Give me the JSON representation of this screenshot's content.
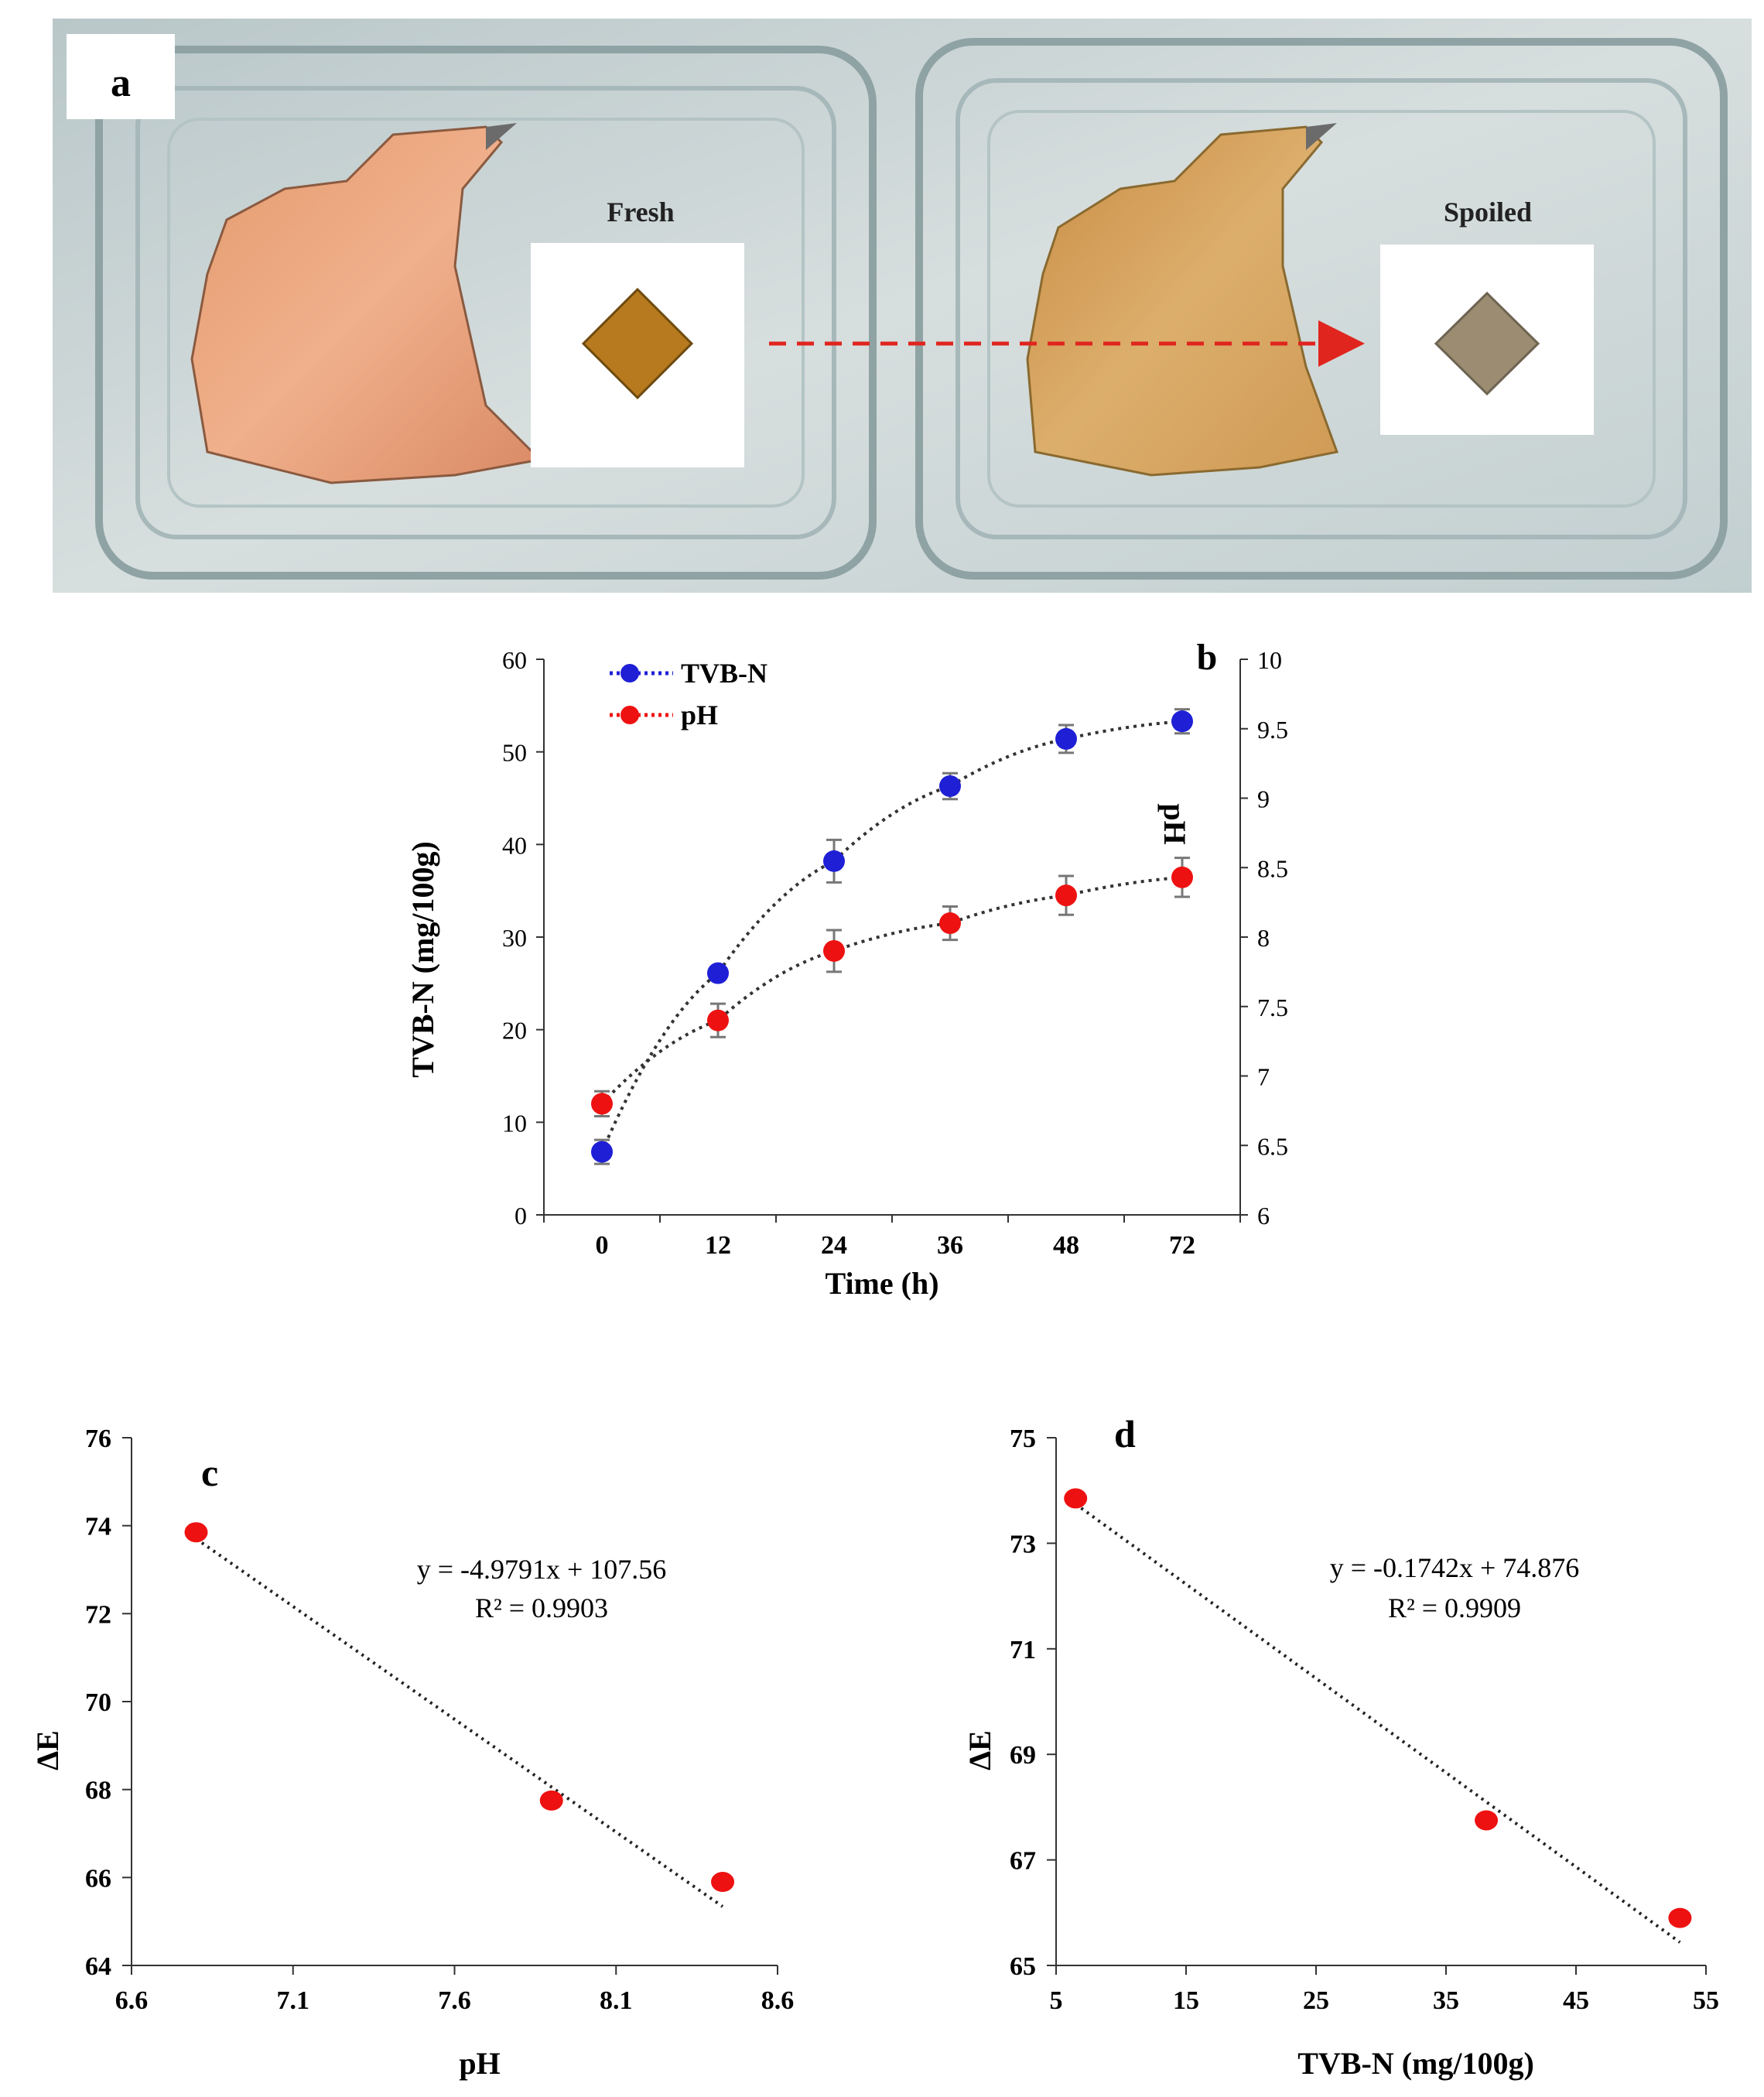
{
  "panel_a": {
    "label": "a",
    "fresh_label": "Fresh",
    "spoiled_label": "Spoiled",
    "colors": {
      "fresh_indicator": "#b87a1e",
      "spoiled_indicator": "#9c8c72",
      "arrow": "#e0241e"
    }
  },
  "chart_data": [
    {
      "id": "b",
      "type": "line",
      "panel_label": "b",
      "xlabel": "Time (h)",
      "ylabel": "TVB-N (mg/100g)",
      "y2label": "pH",
      "categories": [
        "0",
        "12",
        "24",
        "36",
        "48",
        "72"
      ],
      "ylim": [
        0,
        60
      ],
      "yticks": [
        0,
        10,
        20,
        30,
        40,
        50,
        60
      ],
      "y2lim": [
        6,
        10
      ],
      "y2ticks": [
        "6",
        "6.5",
        "7",
        "7.5",
        "8",
        "8.5",
        "9",
        "9.5",
        "10"
      ],
      "series": [
        {
          "name": "TVB-N",
          "axis": "left",
          "color": "#1f1fd6",
          "values": [
            6.8,
            26.1,
            38.2,
            46.3,
            51.4,
            53.3
          ],
          "errors": [
            1.3,
            0.6,
            2.3,
            1.4,
            1.5,
            1.3
          ]
        },
        {
          "name": "pH",
          "axis": "right",
          "color": "#ee1111",
          "values": [
            6.8,
            7.4,
            7.9,
            8.1,
            8.3,
            8.43
          ],
          "errors": [
            0.09,
            0.12,
            0.15,
            0.12,
            0.14,
            0.14
          ]
        }
      ]
    },
    {
      "id": "c",
      "type": "scatter",
      "panel_label": "c",
      "xlabel": "pH",
      "ylabel": "ΔE",
      "xlim": [
        6.6,
        8.6
      ],
      "xticks": [
        "6.6",
        "7.1",
        "7.6",
        "8.1",
        "8.6"
      ],
      "ylim": [
        64,
        76
      ],
      "yticks": [
        "64",
        "66",
        "68",
        "70",
        "72",
        "74",
        "76"
      ],
      "points": {
        "x": [
          6.8,
          7.9,
          8.43
        ],
        "y": [
          73.85,
          67.75,
          65.9
        ]
      },
      "trendline": {
        "slope": -4.9791,
        "intercept": 107.56
      },
      "equation": "y = -4.9791x + 107.56",
      "r2": "R² = 0.9903",
      "point_color": "#ee1111"
    },
    {
      "id": "d",
      "type": "scatter",
      "panel_label": "d",
      "xlabel": "TVB-N (mg/100g)",
      "ylabel": "ΔE",
      "xlim": [
        5,
        55
      ],
      "xticks": [
        "5",
        "15",
        "25",
        "35",
        "45",
        "55"
      ],
      "ylim": [
        65,
        75
      ],
      "yticks": [
        "65",
        "67",
        "69",
        "71",
        "73",
        "75"
      ],
      "points": {
        "x": [
          6.5,
          38.1,
          53.0
        ],
        "y": [
          73.85,
          67.75,
          65.9
        ]
      },
      "trendline": {
        "slope": -0.1742,
        "intercept": 74.876
      },
      "equation": "y = -0.1742x + 74.876",
      "r2": "R² = 0.9909",
      "point_color": "#ee1111"
    }
  ]
}
